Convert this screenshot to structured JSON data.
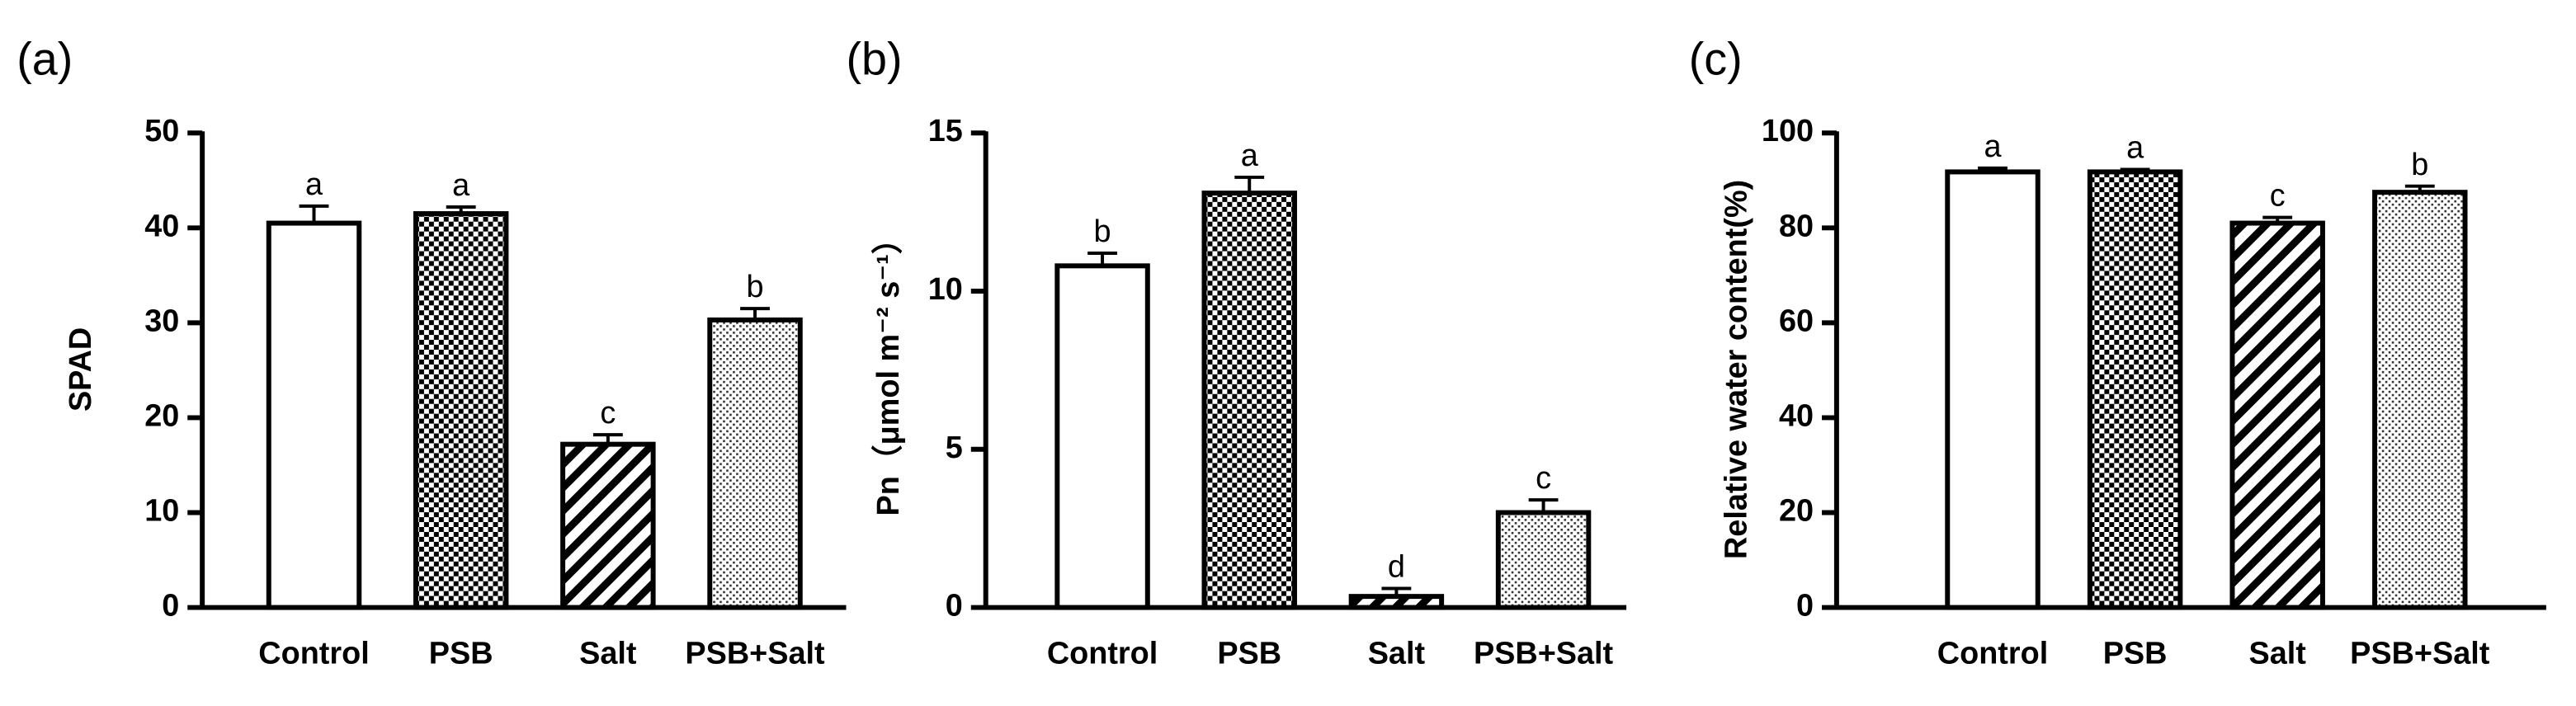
{
  "chart_data": [
    {
      "type": "bar",
      "panel_label": "(a)",
      "y_label": "SPAD",
      "categories": [
        "Control",
        "PSB",
        "Salt",
        "PSB+Salt"
      ],
      "values": [
        40.5,
        41.5,
        17.2,
        30.3
      ],
      "errors": [
        1.8,
        0.7,
        1.0,
        1.2
      ],
      "significance": [
        "a",
        "a",
        "c",
        "b"
      ],
      "bar_patterns": [
        "none",
        "checker",
        "hatch",
        "dots"
      ],
      "color": "#000000",
      "ylim": [
        0,
        50
      ],
      "yticks": [
        0,
        10,
        20,
        30,
        40,
        50
      ],
      "grid": false
    },
    {
      "type": "bar",
      "panel_label": "(b)",
      "y_label": "Pn（μmol m⁻² s⁻¹）",
      "categories": [
        "Control",
        "PSB",
        "Salt",
        "PSB+Salt"
      ],
      "values": [
        10.8,
        13.1,
        0.35,
        3.0
      ],
      "errors": [
        0.4,
        0.5,
        0.25,
        0.4
      ],
      "significance": [
        "b",
        "a",
        "d",
        "c"
      ],
      "bar_patterns": [
        "none",
        "checker",
        "hatch",
        "dots"
      ],
      "color": "#000000",
      "ylim": [
        0,
        15
      ],
      "yticks": [
        0,
        5,
        10,
        15
      ],
      "grid": false
    },
    {
      "type": "bar",
      "panel_label": "(c)",
      "y_label": "Relative water content(%)",
      "categories": [
        "Control",
        "PSB",
        "Salt",
        "PSB+Salt"
      ],
      "values": [
        91.8,
        91.8,
        81.0,
        87.5
      ],
      "errors": [
        0.8,
        0.5,
        1.2,
        1.3
      ],
      "significance": [
        "a",
        "a",
        "c",
        "b"
      ],
      "bar_patterns": [
        "none",
        "checker",
        "hatch",
        "dots"
      ],
      "color": "#000000",
      "ylim": [
        0,
        100
      ],
      "yticks": [
        0,
        20,
        40,
        60,
        80,
        100
      ],
      "grid": false
    }
  ]
}
